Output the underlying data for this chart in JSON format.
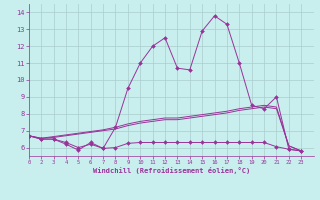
{
  "xlabel": "Windchill (Refroidissement éolien,°C)",
  "bg_color": "#c8eeee",
  "grid_color": "#aacccc",
  "line_color": "#993399",
  "xlim": [
    0,
    23
  ],
  "ylim": [
    5.5,
    14.5
  ],
  "xtick_labels": [
    "0",
    "2",
    "3",
    "4",
    "5",
    "6",
    "7",
    "8",
    "9",
    "10",
    "11",
    "12",
    "13",
    "14",
    "15",
    "16",
    "17",
    "18",
    "19",
    "20",
    "21",
    "22",
    "23"
  ],
  "xtick_pos": [
    0,
    1,
    2,
    3,
    4,
    5,
    6,
    7,
    8,
    9,
    10,
    11,
    12,
    13,
    14,
    15,
    16,
    17,
    18,
    19,
    20,
    21,
    22
  ],
  "yticks": [
    6,
    7,
    8,
    9,
    10,
    11,
    12,
    13,
    14
  ],
  "x_data": [
    0,
    1,
    2,
    3,
    4,
    5,
    6,
    7,
    8,
    9,
    10,
    11,
    12,
    13,
    14,
    15,
    16,
    17,
    18,
    19,
    20,
    21,
    22
  ],
  "curve_flat": [
    6.7,
    6.5,
    6.5,
    6.2,
    5.85,
    6.3,
    5.95,
    6.0,
    6.25,
    6.3,
    6.3,
    6.3,
    6.3,
    6.3,
    6.3,
    6.3,
    6.3,
    6.3,
    6.3,
    6.3,
    6.05,
    5.9,
    5.8
  ],
  "curve_jagged": [
    6.7,
    6.5,
    6.5,
    6.3,
    6.0,
    6.2,
    5.95,
    7.2,
    9.5,
    11.0,
    12.0,
    12.5,
    10.7,
    10.6,
    12.9,
    13.8,
    13.3,
    11.0,
    8.5,
    8.3,
    9.0,
    5.9,
    5.8
  ],
  "curve_upper1": [
    6.7,
    6.55,
    6.65,
    6.75,
    6.85,
    6.95,
    7.05,
    7.2,
    7.4,
    7.55,
    7.65,
    7.75,
    7.75,
    7.85,
    7.95,
    8.05,
    8.15,
    8.3,
    8.4,
    8.5,
    8.4,
    6.1,
    5.8
  ],
  "curve_upper2": [
    6.7,
    6.55,
    6.6,
    6.7,
    6.8,
    6.9,
    7.0,
    7.1,
    7.3,
    7.45,
    7.55,
    7.65,
    7.65,
    7.75,
    7.85,
    7.95,
    8.05,
    8.2,
    8.3,
    8.4,
    8.3,
    6.1,
    5.8
  ]
}
